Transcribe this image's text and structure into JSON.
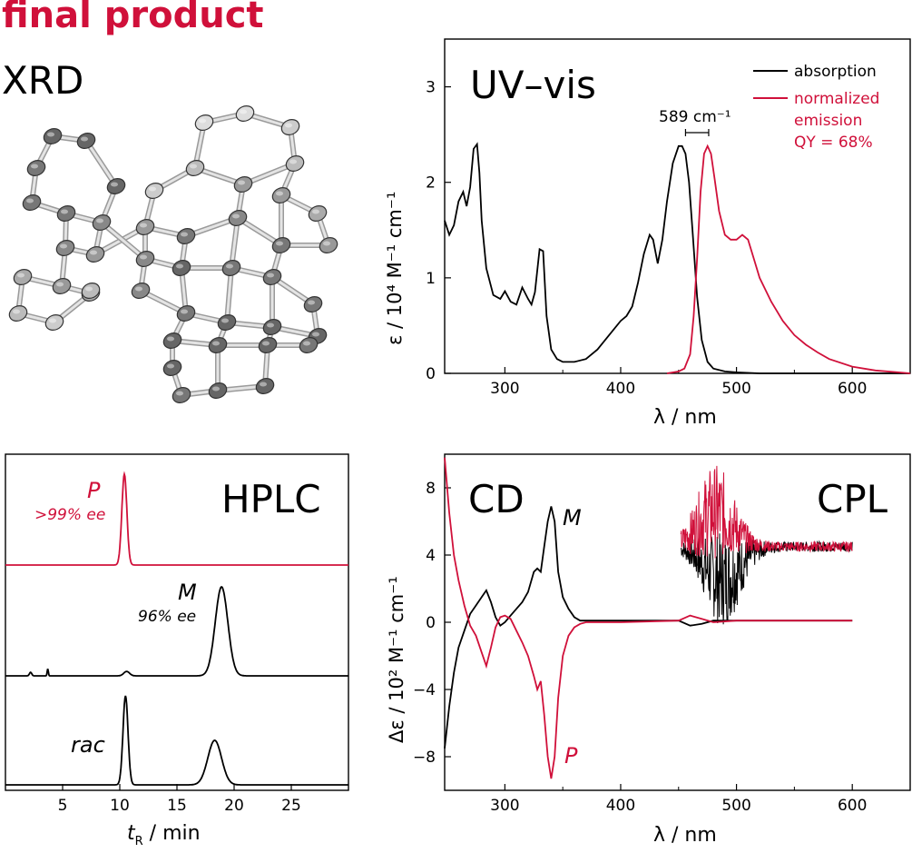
{
  "heading": "final product",
  "xrd_label": "XRD",
  "colors": {
    "red": "#d0103a",
    "black": "#000000",
    "grey": "#888888"
  },
  "chart_data": [
    {
      "id": "uvvis",
      "type": "line",
      "title": "UV–vis",
      "xlabel": "λ / nm",
      "ylabel": "ε / 10⁴ M⁻¹ cm⁻¹",
      "xlim": [
        248,
        650
      ],
      "ylim": [
        0,
        3.5
      ],
      "xticks": [
        300,
        400,
        500,
        600
      ],
      "yticks": [
        0,
        1,
        2,
        3
      ],
      "legend": [
        "absorption",
        "normalized",
        "emission",
        "QY = 68%"
      ],
      "legend_position": "top-right",
      "annotation": "589 cm⁻¹",
      "series": [
        {
          "name": "absorption",
          "color": "#000000",
          "x": [
            248,
            252,
            256,
            260,
            264,
            267,
            270,
            273,
            276,
            278,
            280,
            284,
            290,
            296,
            300,
            305,
            310,
            315,
            320,
            323,
            326,
            330,
            333,
            336,
            340,
            345,
            350,
            360,
            370,
            380,
            390,
            400,
            405,
            410,
            415,
            420,
            425,
            428,
            432,
            436,
            440,
            445,
            450,
            453,
            456,
            459,
            462,
            466,
            470,
            475,
            480,
            490,
            500,
            520,
            550,
            600,
            650
          ],
          "y": [
            1.6,
            1.45,
            1.55,
            1.8,
            1.9,
            1.75,
            1.95,
            2.35,
            2.4,
            2.1,
            1.6,
            1.1,
            0.82,
            0.78,
            0.86,
            0.75,
            0.72,
            0.9,
            0.78,
            0.72,
            0.85,
            1.3,
            1.28,
            0.6,
            0.25,
            0.15,
            0.12,
            0.12,
            0.15,
            0.25,
            0.4,
            0.55,
            0.6,
            0.7,
            0.95,
            1.25,
            1.45,
            1.4,
            1.15,
            1.4,
            1.8,
            2.2,
            2.38,
            2.38,
            2.3,
            2.0,
            1.5,
            0.8,
            0.35,
            0.12,
            0.05,
            0.02,
            0.01,
            0.0,
            0.0,
            0.0,
            0.0
          ]
        },
        {
          "name": "normalized emission",
          "color": "#d0103a",
          "x": [
            440,
            450,
            455,
            460,
            463,
            466,
            469,
            472,
            475,
            478,
            481,
            485,
            490,
            495,
            500,
            505,
            510,
            515,
            520,
            530,
            540,
            550,
            560,
            570,
            580,
            600,
            620,
            640,
            650
          ],
          "y": [
            0.0,
            0.02,
            0.05,
            0.2,
            0.6,
            1.2,
            1.9,
            2.3,
            2.38,
            2.3,
            2.05,
            1.7,
            1.45,
            1.4,
            1.4,
            1.45,
            1.4,
            1.2,
            1.0,
            0.75,
            0.55,
            0.4,
            0.3,
            0.22,
            0.15,
            0.07,
            0.03,
            0.01,
            0.0
          ]
        }
      ]
    },
    {
      "id": "hplc",
      "type": "line",
      "title": "HPLC",
      "xlabel": "t_R / min",
      "xlim": [
        0,
        30
      ],
      "xticks": [
        5,
        10,
        15,
        20,
        25
      ],
      "annotations": [
        {
          "text": "P",
          "color": "#d0103a"
        },
        {
          "text": ">99% ee",
          "color": "#d0103a"
        },
        {
          "text": "M",
          "color": "#000000"
        },
        {
          "text": "96% ee",
          "color": "#000000"
        },
        {
          "text": "rac",
          "color": "#000000"
        }
      ],
      "series": [
        {
          "name": "P",
          "color": "#d0103a",
          "peaks": [
            {
              "t": 10.4,
              "height": 1.0,
              "width": 0.22
            }
          ]
        },
        {
          "name": "M",
          "color": "#000000",
          "peaks": [
            {
              "t": 10.6,
              "height": 0.05,
              "width": 0.25
            },
            {
              "t": 18.9,
              "height": 1.0,
              "width": 0.55
            },
            {
              "t": 2.2,
              "height": 0.04,
              "width": 0.1
            },
            {
              "t": 3.7,
              "height": 0.08,
              "width": 0.05
            }
          ]
        },
        {
          "name": "rac",
          "color": "#000000",
          "peaks": [
            {
              "t": 10.5,
              "height": 1.0,
              "width": 0.22
            },
            {
              "t": 18.3,
              "height": 0.5,
              "width": 0.6
            }
          ]
        }
      ]
    },
    {
      "id": "cd",
      "type": "line",
      "title": "CD",
      "title2": "CPL",
      "xlabel": "λ / nm",
      "ylabel": "Δε / 10² M⁻¹ cm⁻¹",
      "xlim": [
        248,
        650
      ],
      "ylim": [
        -10,
        10
      ],
      "xticks": [
        300,
        400,
        500,
        600
      ],
      "yticks": [
        -8,
        -4,
        0,
        4,
        8
      ],
      "annotations": [
        {
          "text": "M",
          "color": "#000000"
        },
        {
          "text": "P",
          "color": "#d0103a"
        }
      ],
      "series": [
        {
          "name": "M",
          "color": "#000000",
          "x": [
            248,
            252,
            256,
            260,
            265,
            270,
            275,
            280,
            284,
            288,
            292,
            296,
            300,
            305,
            310,
            315,
            320,
            325,
            328,
            331,
            334,
            337,
            340,
            343,
            346,
            350,
            355,
            360,
            365,
            370,
            400,
            450,
            460,
            470,
            480,
            500,
            550,
            600
          ],
          "y": [
            -7.5,
            -5.0,
            -3.0,
            -1.5,
            -0.5,
            0.5,
            1.0,
            1.5,
            1.9,
            1.2,
            0.3,
            -0.2,
            0.0,
            0.4,
            0.8,
            1.2,
            1.8,
            3.0,
            3.2,
            3.0,
            4.5,
            6.0,
            6.9,
            6.0,
            3.0,
            1.5,
            0.8,
            0.3,
            0.1,
            0.1,
            0.1,
            0.1,
            -0.2,
            -0.1,
            0.1,
            0.1,
            0.1,
            0.1
          ]
        },
        {
          "name": "P",
          "color": "#d0103a",
          "x": [
            248,
            252,
            256,
            260,
            265,
            270,
            275,
            280,
            284,
            288,
            292,
            296,
            300,
            305,
            310,
            315,
            320,
            325,
            328,
            331,
            334,
            337,
            340,
            343,
            346,
            350,
            355,
            360,
            365,
            370,
            400,
            450,
            460,
            470,
            480,
            500,
            550,
            600
          ],
          "y": [
            9.8,
            6.5,
            4.0,
            2.5,
            1.0,
            -0.2,
            -0.8,
            -1.8,
            -2.6,
            -1.5,
            -0.3,
            0.3,
            0.4,
            0.2,
            -0.5,
            -1.2,
            -2.0,
            -3.2,
            -4.0,
            -3.5,
            -5.5,
            -8.0,
            -9.3,
            -8.0,
            -4.5,
            -2.0,
            -0.8,
            -0.3,
            -0.1,
            0.0,
            0.0,
            0.1,
            0.4,
            0.2,
            0.0,
            0.1,
            0.1,
            0.1
          ]
        },
        {
          "name": "CPL black",
          "color": "#000000",
          "x_range": [
            452,
            600
          ],
          "y_center": 4.5,
          "amplitude": -2.8,
          "peak_x": 488
        },
        {
          "name": "CPL red",
          "color": "#d0103a",
          "x_range": [
            452,
            600
          ],
          "y_center": 4.5,
          "amplitude": 3.0,
          "peak_x": 482
        }
      ]
    }
  ]
}
